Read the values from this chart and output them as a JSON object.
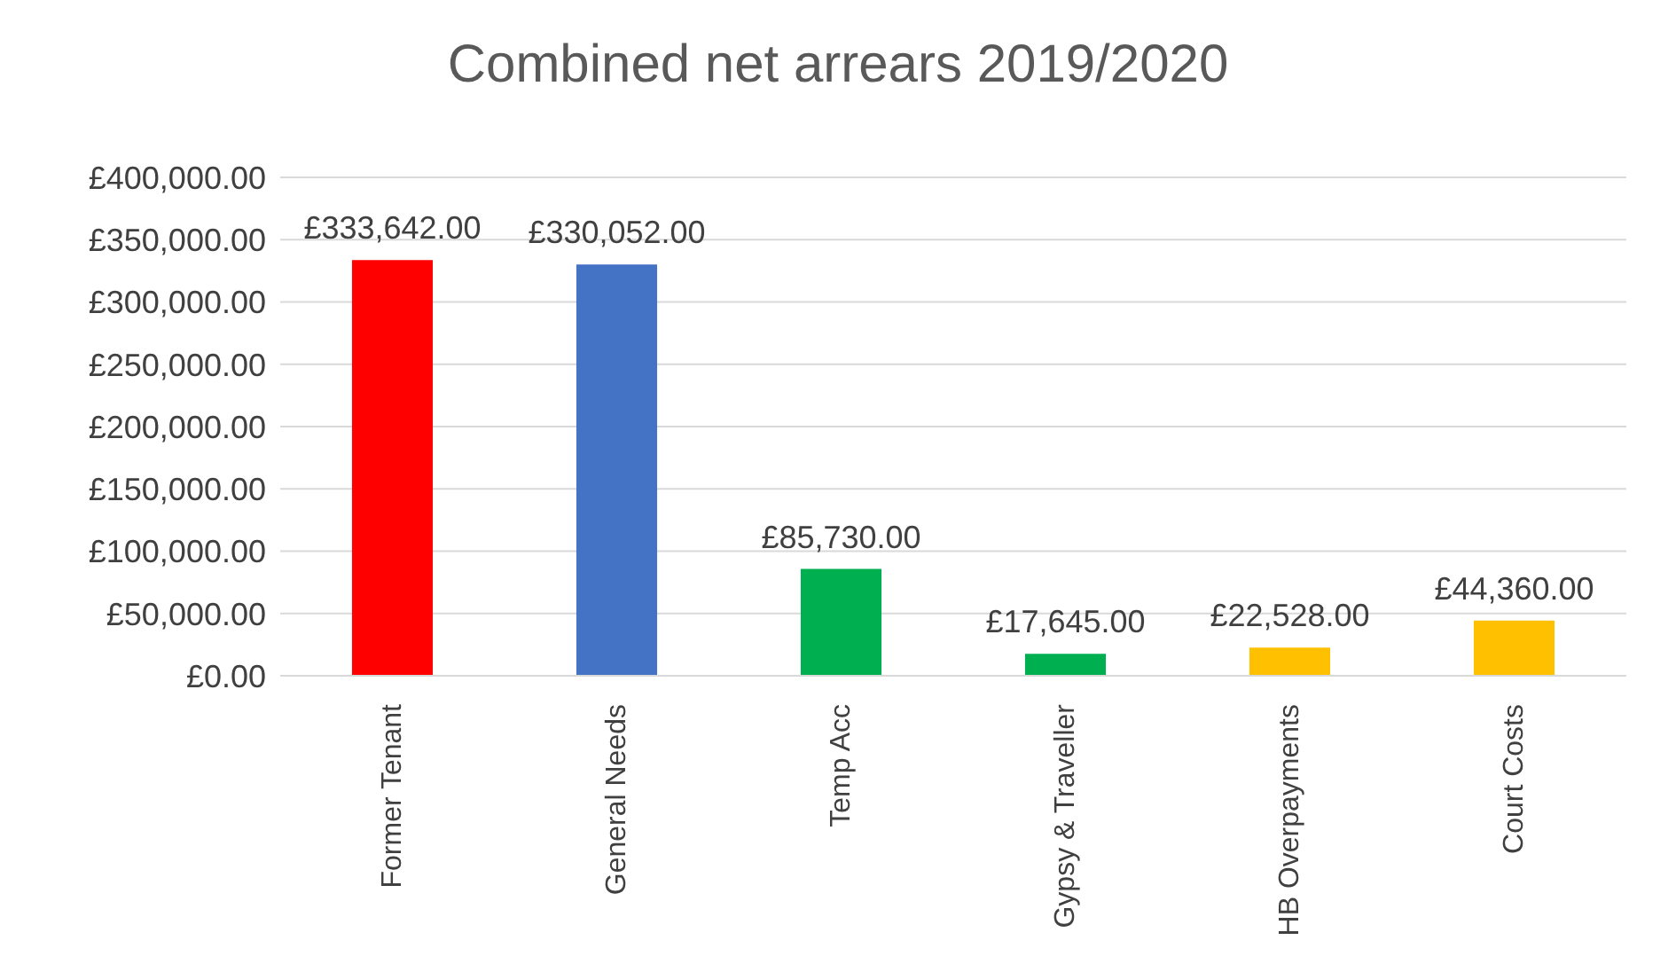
{
  "chart_data": {
    "type": "bar",
    "title": "Combined net arrears 2019/2020",
    "categories": [
      "Former Tenant",
      "General Needs",
      "Temp Acc",
      "Gypsy & Traveller",
      "HB Overpayments",
      "Court Costs"
    ],
    "values": [
      333642,
      330052,
      85730,
      17645,
      22528,
      44360
    ],
    "colors": [
      "#ff0000",
      "#4472c4",
      "#00b050",
      "#00b050",
      "#ffc000",
      "#ffc000"
    ],
    "value_labels": [
      "£333,642.00",
      "£330,052.00",
      "£85,730.00",
      "£17,645.00",
      "£22,528.00",
      "£44,360.00"
    ],
    "ylim": [
      0,
      400000
    ],
    "yticks": [
      {
        "value": 0,
        "label": "£0.00"
      },
      {
        "value": 50000,
        "label": "£50,000.00"
      },
      {
        "value": 100000,
        "label": "£100,000.00"
      },
      {
        "value": 150000,
        "label": "£150,000.00"
      },
      {
        "value": 200000,
        "label": "£200,000.00"
      },
      {
        "value": 250000,
        "label": "£250,000.00"
      },
      {
        "value": 300000,
        "label": "£300,000.00"
      },
      {
        "value": 350000,
        "label": "£350,000.00"
      },
      {
        "value": 400000,
        "label": "£400,000.00"
      }
    ],
    "grid": "y",
    "legend": false
  }
}
